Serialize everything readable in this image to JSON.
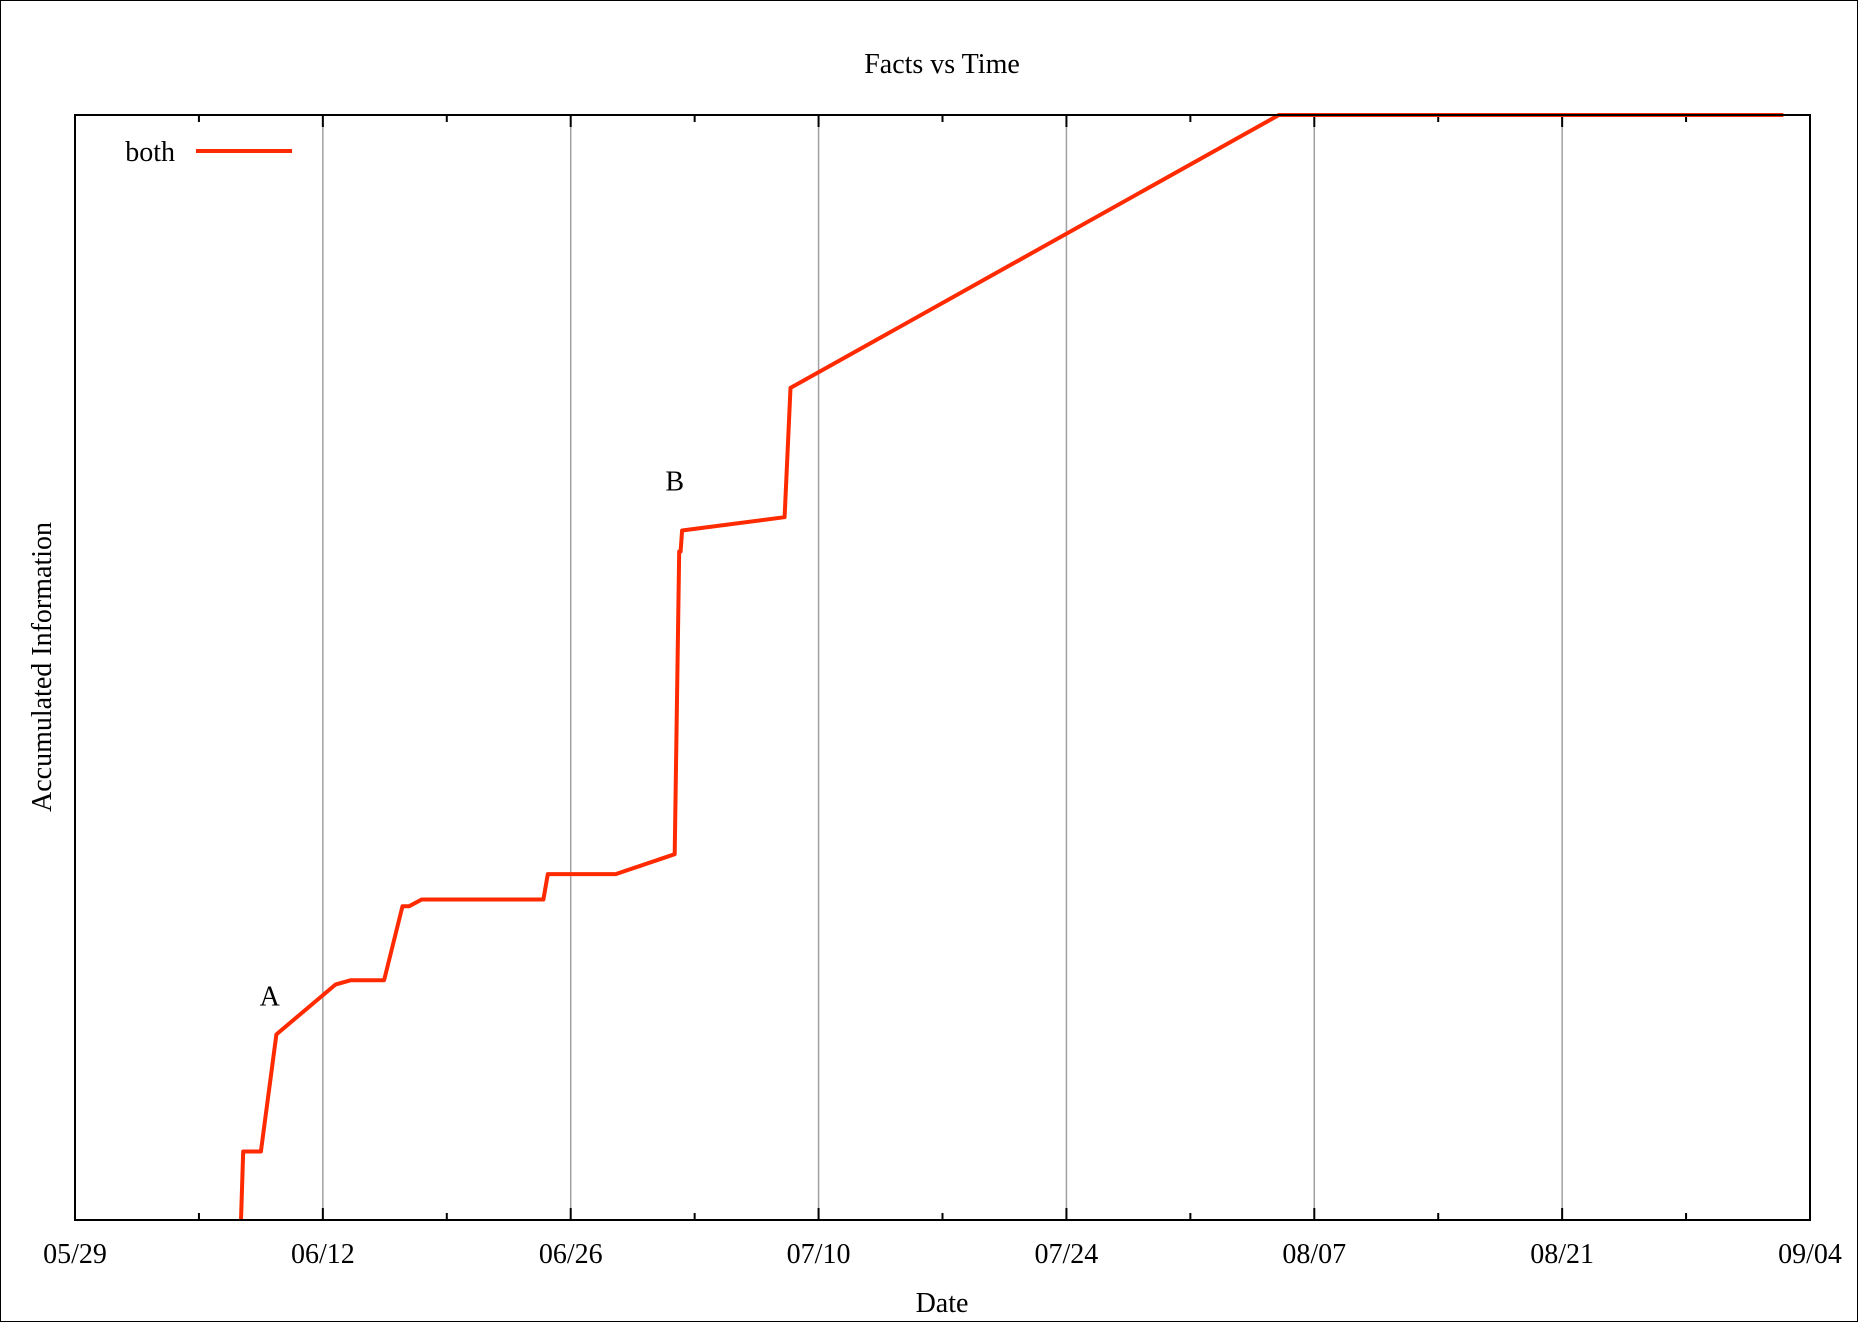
{
  "chart_data": {
    "type": "line",
    "title": "Facts vs Time",
    "xlabel": "Date",
    "ylabel": "Accumulated Information",
    "x_ticks": [
      "05/29",
      "06/12",
      "06/26",
      "07/10",
      "07/24",
      "08/07",
      "08/21",
      "09/04"
    ],
    "xlim": [
      "05/29",
      "09/04"
    ],
    "ylim": [
      0,
      100
    ],
    "y_ticks_shown": false,
    "grid": "vertical",
    "legend": "top-left",
    "series": [
      {
        "name": "both",
        "color": "#ff2a00",
        "points": [
          [
            "06/07 09:00",
            0.0
          ],
          [
            "06/07 12:00",
            6.2
          ],
          [
            "06/08 12:00",
            6.2
          ],
          [
            "06/09 09:00",
            16.8
          ],
          [
            "06/12 17:00",
            21.3
          ],
          [
            "06/13 14:00",
            21.7
          ],
          [
            "06/15 11:00",
            21.7
          ],
          [
            "06/16 12:00",
            28.4
          ],
          [
            "06/16 21:00",
            28.4
          ],
          [
            "06/17 14:00",
            29.0
          ],
          [
            "06/24 11:00",
            29.0
          ],
          [
            "06/24 17:00",
            31.3
          ],
          [
            "06/28 13:00",
            31.3
          ],
          [
            "07/01 21:00",
            33.1
          ],
          [
            "07/02 03:00",
            60.5
          ],
          [
            "07/02 05:00",
            60.5
          ],
          [
            "07/02 07:00",
            62.4
          ],
          [
            "07/08 02:00",
            63.6
          ],
          [
            "07/08 10:00",
            75.3
          ],
          [
            "08/05 00:00",
            100.0
          ],
          [
            "09/02 12:00",
            100.0
          ]
        ]
      }
    ],
    "annotations": [
      {
        "text": "A",
        "x": "06/09 00:00",
        "y": 19.4
      },
      {
        "text": "B",
        "x": "07/01 21:00",
        "y": 66.0
      }
    ]
  }
}
